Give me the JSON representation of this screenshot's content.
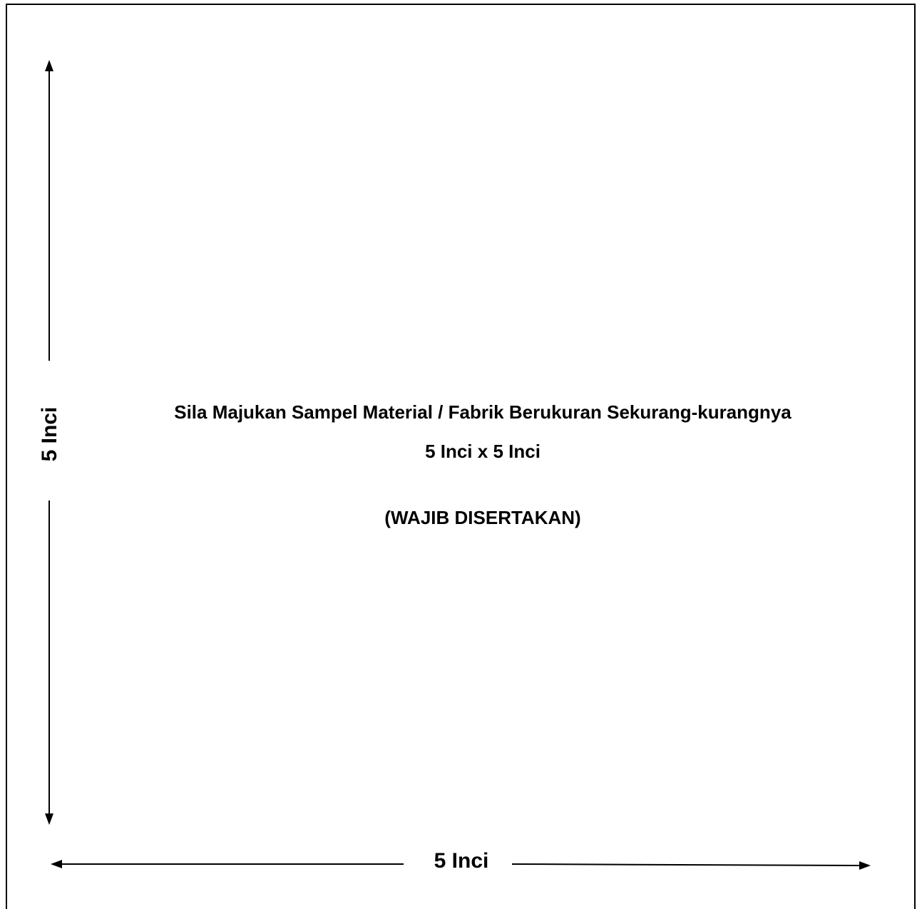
{
  "sample_box": {
    "instruction_line_1": "Sila Majukan Sampel Material / Fabrik Berukuran Sekurang-kurangnya",
    "instruction_line_2": "5 Inci x 5 Inci",
    "instruction_line_3": "(WAJIB DISERTAKAN)",
    "height_label": "5 Inci",
    "width_label": "5 Inci"
  },
  "colors": {
    "ink": "#000000",
    "paper": "#ffffff"
  }
}
